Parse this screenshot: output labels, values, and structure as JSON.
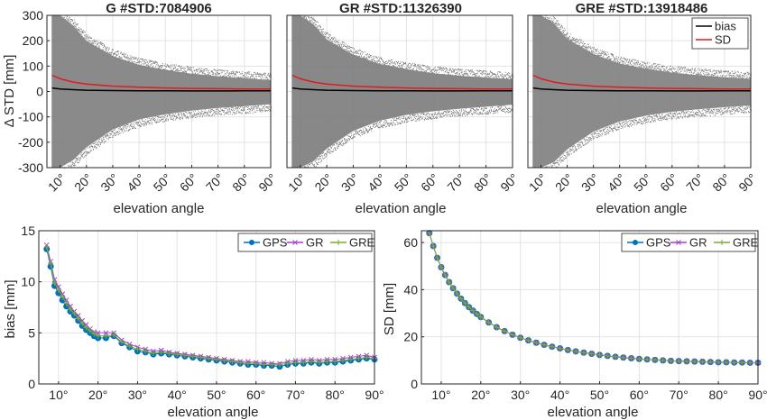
{
  "chart_data": [
    {
      "type": "scatter",
      "title": "G  #STD:7084906",
      "xlabel": "elevation angle",
      "ylabel": "Δ STD [mm]",
      "xlim": [
        5,
        90
      ],
      "ylim": [
        -300,
        300
      ],
      "xticks": [
        "10°",
        "20°",
        "30°",
        "40°",
        "50°",
        "60°",
        "70°",
        "80°",
        "90°"
      ],
      "yticks": [
        "300",
        "200",
        "100",
        "0",
        "-100",
        "-200",
        "-300"
      ],
      "scatter_spread": {
        "x": [
          7,
          10,
          15,
          20,
          30,
          40,
          50,
          60,
          70,
          80,
          90
        ],
        "upper": [
          300,
          300,
          260,
          200,
          140,
          105,
          85,
          70,
          60,
          52,
          45
        ],
        "lower": [
          -300,
          -300,
          -270,
          -220,
          -150,
          -110,
          -90,
          -75,
          -65,
          -58,
          -50
        ]
      },
      "series": [
        {
          "name": "bias",
          "color": "#000000",
          "x": [
            7,
            10,
            15,
            20,
            30,
            40,
            50,
            60,
            70,
            80,
            90
          ],
          "values": [
            14,
            10,
            7,
            5,
            3.5,
            3,
            2.5,
            2,
            2,
            2.5,
            2.5
          ]
        },
        {
          "name": "SD",
          "color": "#e31a1c",
          "x": [
            7,
            10,
            15,
            20,
            30,
            40,
            50,
            60,
            70,
            80,
            90
          ],
          "values": [
            64,
            50,
            37,
            29,
            21,
            17,
            14,
            12,
            11,
            10,
            9.5
          ]
        }
      ],
      "grid": true
    },
    {
      "type": "scatter",
      "title": "GR  #STD:11326390",
      "xlabel": "elevation angle",
      "ylabel": "",
      "xlim": [
        5,
        90
      ],
      "ylim": [
        -300,
        300
      ],
      "xticks": [
        "10°",
        "20°",
        "30°",
        "40°",
        "50°",
        "60°",
        "70°",
        "80°",
        "90°"
      ],
      "scatter_spread": {
        "x": [
          7,
          10,
          15,
          20,
          30,
          40,
          50,
          60,
          70,
          80,
          90
        ],
        "upper": [
          300,
          300,
          265,
          205,
          145,
          108,
          88,
          72,
          62,
          55,
          48
        ],
        "lower": [
          -300,
          -300,
          -275,
          -225,
          -155,
          -115,
          -92,
          -78,
          -68,
          -60,
          -52
        ]
      },
      "series": [
        {
          "name": "bias",
          "color": "#000000",
          "x": [
            7,
            10,
            15,
            20,
            30,
            40,
            50,
            60,
            70,
            80,
            90
          ],
          "values": [
            14,
            10,
            7,
            5,
            3.5,
            3,
            2.5,
            2,
            2,
            2.5,
            2.5
          ]
        },
        {
          "name": "SD",
          "color": "#e31a1c",
          "x": [
            7,
            10,
            15,
            20,
            30,
            40,
            50,
            60,
            70,
            80,
            90
          ],
          "values": [
            64,
            50,
            37,
            29,
            21,
            17,
            14,
            12,
            11,
            10,
            9.5
          ]
        }
      ],
      "grid": true
    },
    {
      "type": "scatter",
      "title": "GRE  #STD:13918486",
      "xlabel": "elevation angle",
      "ylabel": "",
      "xlim": [
        5,
        90
      ],
      "ylim": [
        -300,
        300
      ],
      "xticks": [
        "10°",
        "20°",
        "30°",
        "40°",
        "50°",
        "60°",
        "70°",
        "80°",
        "90°"
      ],
      "legend": [
        "bias",
        "SD"
      ],
      "legend_position": "top-right",
      "scatter_spread": {
        "x": [
          7,
          10,
          15,
          20,
          30,
          40,
          50,
          60,
          70,
          80,
          90
        ],
        "upper": [
          300,
          300,
          268,
          208,
          148,
          110,
          90,
          74,
          64,
          56,
          50
        ],
        "lower": [
          -300,
          -300,
          -278,
          -228,
          -158,
          -118,
          -95,
          -80,
          -70,
          -62,
          -55
        ]
      },
      "series": [
        {
          "name": "bias",
          "color": "#000000",
          "x": [
            7,
            10,
            15,
            20,
            30,
            40,
            50,
            60,
            70,
            80,
            90
          ],
          "values": [
            14,
            10,
            7,
            5,
            3.5,
            3,
            2.5,
            2,
            2,
            2.5,
            2.5
          ]
        },
        {
          "name": "SD",
          "color": "#e31a1c",
          "x": [
            7,
            10,
            15,
            20,
            30,
            40,
            50,
            60,
            70,
            80,
            90
          ],
          "values": [
            64,
            50,
            37,
            29,
            21,
            17,
            14,
            12,
            11,
            10,
            9.5
          ]
        }
      ],
      "grid": true
    },
    {
      "type": "line",
      "title": "",
      "xlabel": "elevation angle",
      "ylabel": "bias [mm]",
      "xlim": [
        5,
        90
      ],
      "ylim": [
        0,
        15
      ],
      "xticks": [
        "10°",
        "20°",
        "30°",
        "40°",
        "50°",
        "60°",
        "70°",
        "80°",
        "90°"
      ],
      "yticks": [
        "15",
        "10",
        "5",
        "0"
      ],
      "legend": [
        "GPS",
        "GR",
        "GRE"
      ],
      "legend_position": "top-right",
      "x": [
        7,
        8,
        9,
        10,
        11,
        12,
        13,
        14,
        15,
        16,
        17,
        18,
        19,
        20,
        22,
        24,
        26,
        28,
        30,
        32,
        34,
        36,
        38,
        40,
        42,
        44,
        46,
        48,
        50,
        52,
        54,
        56,
        58,
        60,
        62,
        64,
        66,
        68,
        70,
        72,
        74,
        76,
        78,
        80,
        82,
        84,
        86,
        88,
        90
      ],
      "series": [
        {
          "name": "GPS",
          "color": "#0072bd",
          "marker": "circle",
          "values": [
            13.2,
            11.5,
            9.6,
            8.9,
            8.2,
            7.6,
            7.1,
            6.7,
            6.2,
            5.7,
            5.3,
            5.0,
            4.7,
            4.5,
            4.5,
            4.7,
            4.0,
            3.6,
            3.2,
            3.1,
            2.9,
            3.0,
            2.9,
            2.8,
            2.7,
            2.6,
            2.5,
            2.4,
            2.3,
            2.2,
            2.1,
            2.0,
            1.9,
            1.9,
            1.8,
            1.8,
            1.7,
            1.9,
            2.0,
            2.0,
            2.1,
            2.0,
            2.1,
            2.1,
            2.2,
            2.3,
            2.4,
            2.5,
            2.4
          ]
        },
        {
          "name": "GR",
          "color": "#a044c8",
          "marker": "x",
          "values": [
            13.6,
            12.0,
            10.2,
            9.5,
            8.8,
            8.2,
            7.6,
            7.1,
            6.7,
            6.2,
            5.8,
            5.4,
            5.1,
            5.0,
            5.0,
            5.0,
            4.3,
            3.9,
            3.6,
            3.4,
            3.2,
            3.3,
            3.1,
            3.0,
            2.9,
            2.8,
            2.7,
            2.6,
            2.5,
            2.4,
            2.3,
            2.2,
            2.2,
            2.1,
            2.1,
            2.0,
            2.0,
            2.2,
            2.3,
            2.3,
            2.4,
            2.3,
            2.4,
            2.4,
            2.5,
            2.6,
            2.7,
            2.8,
            2.6
          ]
        },
        {
          "name": "GRE",
          "color": "#77ac30",
          "marker": "plus",
          "values": [
            13.4,
            11.8,
            9.9,
            9.2,
            8.5,
            7.9,
            7.3,
            6.9,
            6.4,
            5.9,
            5.5,
            5.2,
            4.9,
            4.7,
            4.7,
            4.8,
            4.1,
            3.7,
            3.4,
            3.2,
            3.0,
            3.1,
            3.0,
            2.9,
            2.8,
            2.7,
            2.6,
            2.5,
            2.4,
            2.3,
            2.2,
            2.1,
            2.0,
            2.0,
            1.9,
            1.9,
            1.9,
            2.0,
            2.1,
            2.1,
            2.2,
            2.1,
            2.2,
            2.2,
            2.3,
            2.4,
            2.5,
            2.6,
            2.5
          ]
        }
      ],
      "grid": true
    },
    {
      "type": "line",
      "title": "",
      "xlabel": "elevation angle",
      "ylabel": "SD [mm]",
      "xlim": [
        5,
        90
      ],
      "ylim": [
        0,
        65
      ],
      "xticks": [
        "10°",
        "20°",
        "30°",
        "40°",
        "50°",
        "60°",
        "70°",
        "80°",
        "90°"
      ],
      "yticks": [
        "60",
        "40",
        "20",
        "0"
      ],
      "legend": [
        "GPS",
        "GR",
        "GRE"
      ],
      "legend_position": "top-right",
      "x": [
        7,
        8,
        9,
        10,
        11,
        12,
        13,
        14,
        15,
        16,
        17,
        18,
        19,
        20,
        22,
        24,
        26,
        28,
        30,
        32,
        34,
        36,
        38,
        40,
        42,
        44,
        46,
        48,
        50,
        52,
        54,
        56,
        58,
        60,
        62,
        64,
        66,
        68,
        70,
        72,
        74,
        76,
        78,
        80,
        82,
        84,
        86,
        88,
        90
      ],
      "series": [
        {
          "name": "GPS",
          "color": "#0072bd",
          "marker": "circle",
          "values": [
            64,
            58.5,
            53.5,
            49.5,
            46.2,
            43.2,
            40.6,
            38.3,
            36.2,
            34.3,
            32.6,
            31.1,
            29.7,
            28.4,
            26.1,
            24.1,
            22.4,
            20.9,
            19.6,
            18.5,
            17.5,
            16.6,
            15.8,
            15.1,
            14.4,
            13.8,
            13.3,
            12.8,
            12.3,
            11.9,
            11.5,
            11.2,
            10.9,
            10.6,
            10.4,
            10.2,
            10.0,
            9.8,
            9.7,
            9.6,
            9.5,
            9.4,
            9.3,
            9.2,
            9.2,
            9.1,
            9.1,
            9.0,
            9.0
          ]
        },
        {
          "name": "GR",
          "color": "#a044c8",
          "marker": "x",
          "values": [
            64,
            58.5,
            53.5,
            49.5,
            46.2,
            43.2,
            40.6,
            38.3,
            36.2,
            34.3,
            32.6,
            31.1,
            29.7,
            28.4,
            26.1,
            24.1,
            22.4,
            20.9,
            19.6,
            18.5,
            17.5,
            16.6,
            15.8,
            15.1,
            14.4,
            13.8,
            13.3,
            12.8,
            12.3,
            11.9,
            11.5,
            11.2,
            10.9,
            10.6,
            10.4,
            10.2,
            10.0,
            9.8,
            9.7,
            9.6,
            9.5,
            9.4,
            9.3,
            9.2,
            9.2,
            9.1,
            9.1,
            9.0,
            9.0
          ]
        },
        {
          "name": "GRE",
          "color": "#77ac30",
          "marker": "plus",
          "values": [
            64,
            58.5,
            53.5,
            49.5,
            46.2,
            43.2,
            40.6,
            38.3,
            36.2,
            34.3,
            32.6,
            31.1,
            29.7,
            28.4,
            26.1,
            24.1,
            22.4,
            20.9,
            19.6,
            18.5,
            17.5,
            16.6,
            15.8,
            15.1,
            14.4,
            13.8,
            13.3,
            12.8,
            12.3,
            11.9,
            11.5,
            11.2,
            10.9,
            10.6,
            10.4,
            10.2,
            10.0,
            9.8,
            9.7,
            9.6,
            9.5,
            9.4,
            9.3,
            9.2,
            9.2,
            9.1,
            9.1,
            9.0,
            9.0
          ]
        }
      ],
      "grid": true
    }
  ]
}
